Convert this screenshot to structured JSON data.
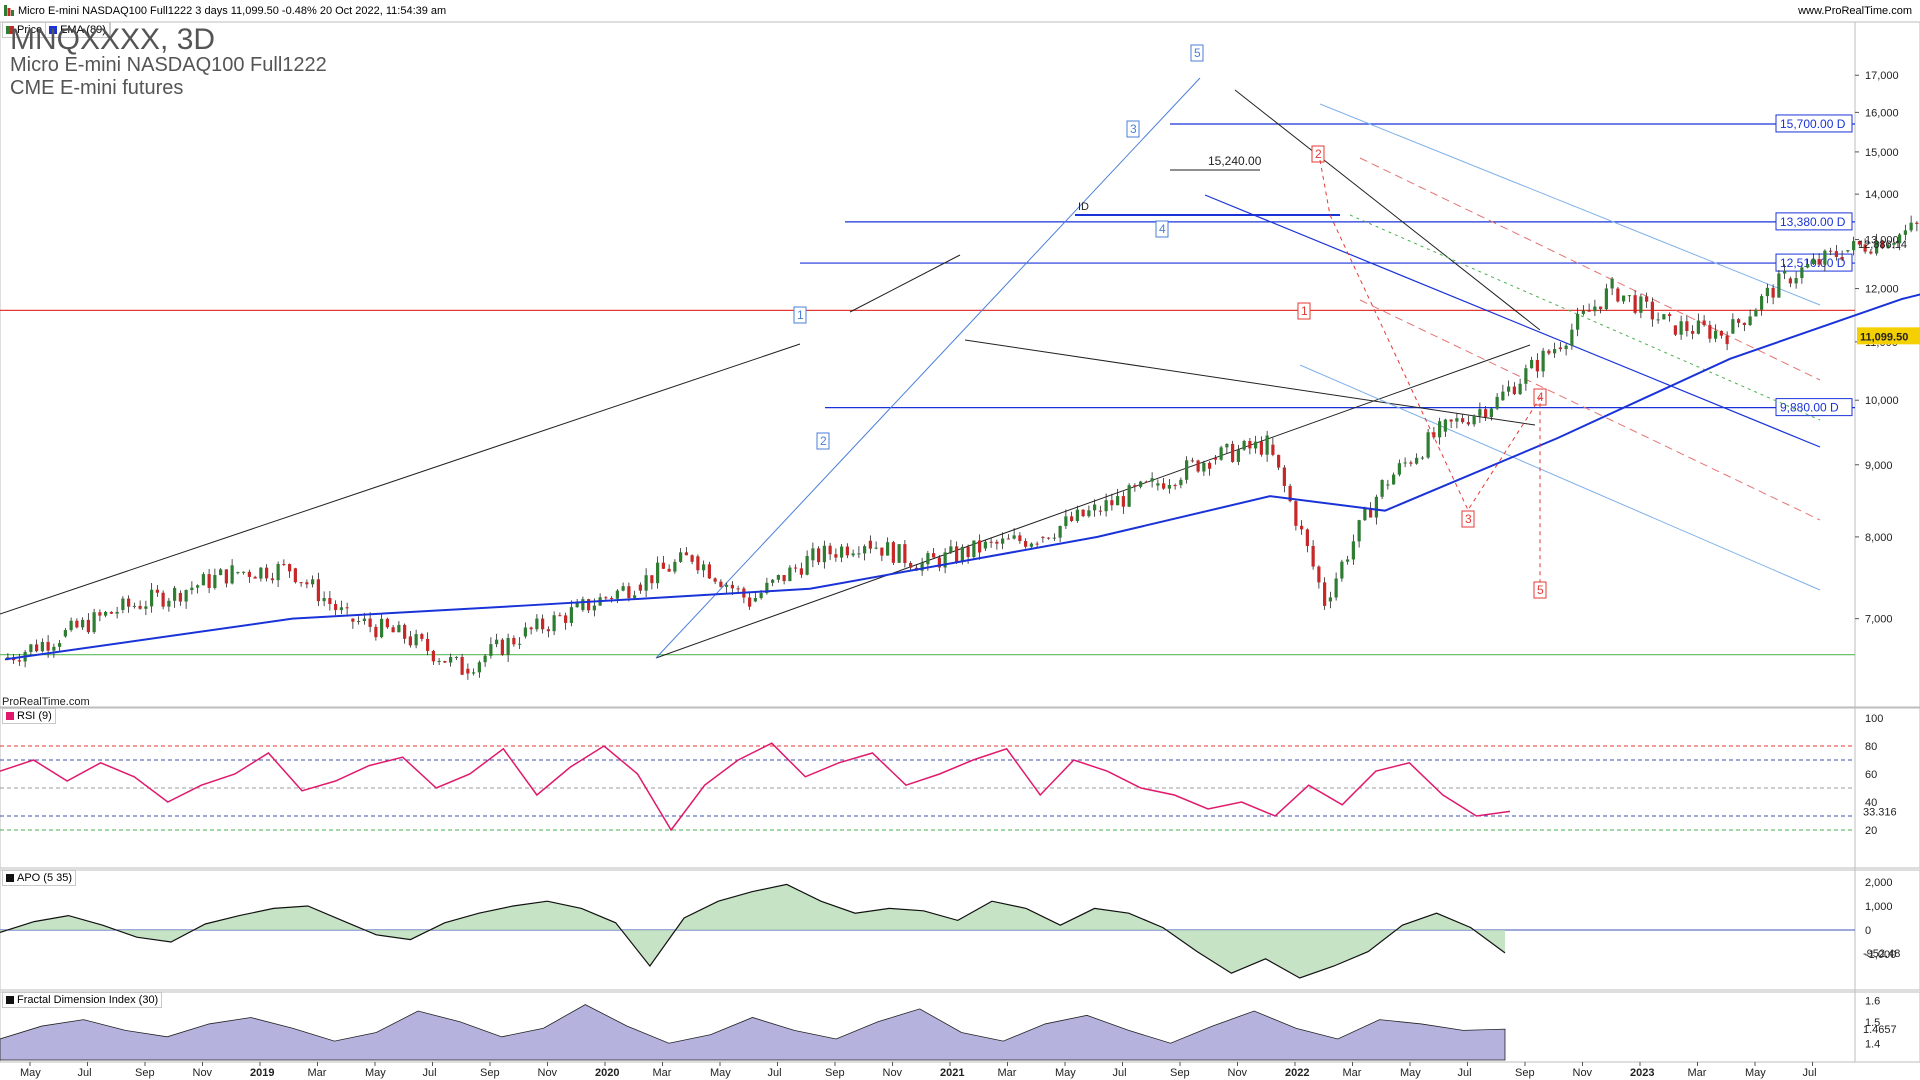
{
  "header": {
    "title": "Micro E-mini NASDAQ100 Full1222 3 days 11,099.50 -0.48% 20 Oct 2022, 11:54:39 am",
    "site": "www.ProRealTime.com"
  },
  "legend": {
    "price_label": "Price",
    "ema_label": "EMA (89)"
  },
  "instrument": {
    "symbol_title": "MNQXXXX, 3D",
    "name": "Micro E-mini NASDAQ100 Full1222",
    "exchange": "CME E-mini futures"
  },
  "watermark": "ProRealTime.com",
  "colors": {
    "price_up": "#2e7d32",
    "price_down": "#c62828",
    "ema": "#1a33d9",
    "level_line": "#1a33d9",
    "red_level": "#e53935",
    "support": "#5cb85c",
    "rsi": "#e0196b",
    "apo_line": "#111111",
    "apo_pos_fill": "#b8dcb8",
    "apo_neg_fill": "#d9b8b8",
    "fdi_fill": "#b5b3dd",
    "wave_blue": "#4a7fd9",
    "wave_red": "#e53935",
    "channel_light": "#7fb0ea",
    "last_price_bg": "#f5d000"
  },
  "time_axis": {
    "labels": [
      "May",
      "Jul",
      "Sep",
      "Nov",
      "2019",
      "Mar",
      "May",
      "Jul",
      "Sep",
      "Nov",
      "2020",
      "Mar",
      "May",
      "Jul",
      "Sep",
      "Nov",
      "2021",
      "Mar",
      "May",
      "Jul",
      "Sep",
      "Nov",
      "2022",
      "Mar",
      "May",
      "Jul",
      "Sep",
      "Nov",
      "2023",
      "Mar",
      "May",
      "Jul",
      "Sep"
    ],
    "bold": [
      "2019",
      "2020",
      "2021",
      "2022",
      "2023"
    ]
  },
  "price_axis": {
    "ticks": [
      "17,000",
      "16,000",
      "15,000",
      "14,000",
      "13,000",
      "12,000",
      "11,000",
      "10,000",
      "9,000",
      "8,000",
      "7,000"
    ],
    "last_price": "11,099.50",
    "small_marker": "12,886.14"
  },
  "levels": [
    {
      "label": "15,700.00 D",
      "value": 15700
    },
    {
      "label": "13,380.00 D",
      "value": 13380
    },
    {
      "label": "12,510.00 D",
      "value": 12510
    },
    {
      "label": "9,880.00 D",
      "value": 9880
    }
  ],
  "annotations": {
    "peak_label": "15,240.00",
    "blue_waves": [
      "1",
      "2",
      "3",
      "4",
      "5"
    ],
    "red_waves": [
      "1",
      "2",
      "3",
      "4",
      "5"
    ],
    "small_tag": "ID"
  },
  "rsi": {
    "title": "RSI (9)",
    "ticks": [
      "100",
      "80",
      "60",
      "40",
      "20"
    ],
    "value": "33.316"
  },
  "apo": {
    "title": "APO (5 35)",
    "ticks": [
      "2,000",
      "1,000",
      "0",
      "-1,000"
    ],
    "value": "-952.48"
  },
  "fdi": {
    "title": "Fractal Dimension Index (30)",
    "ticks": [
      "1.6",
      "1.5",
      "1.4"
    ],
    "value": "1.4657"
  },
  "chart_data": {
    "type": "line",
    "title": "Micro E-mini NASDAQ100 Full1222 3 days",
    "ylim": [
      6200,
      17600
    ],
    "y_scale": "log",
    "series": [
      {
        "name": "Price",
        "x": [
          "2018-04",
          "2018-05",
          "2018-06",
          "2018-07",
          "2018-08",
          "2018-09",
          "2018-10",
          "2018-11",
          "2018-12",
          "2019-01",
          "2019-02",
          "2019-03",
          "2019-04",
          "2019-05",
          "2019-06",
          "2019-07",
          "2019-08",
          "2019-09",
          "2019-10",
          "2019-11",
          "2019-12",
          "2020-01",
          "2020-02",
          "2020-03",
          "2020-04",
          "2020-05",
          "2020-06",
          "2020-07",
          "2020-08",
          "2020-09",
          "2020-10",
          "2020-11",
          "2020-12",
          "2021-01",
          "2021-02",
          "2021-03",
          "2021-04",
          "2021-05",
          "2021-06",
          "2021-07",
          "2021-08",
          "2021-09",
          "2021-10",
          "2021-11",
          "2021-12",
          "2022-01",
          "2022-02",
          "2022-03",
          "2022-04",
          "2022-05",
          "2022-06",
          "2022-07",
          "2022-08",
          "2022-09",
          "2022-10"
        ],
        "values": [
          6550,
          6800,
          7100,
          7300,
          7550,
          7600,
          7000,
          6800,
          6450,
          6800,
          7100,
          7400,
          7750,
          7200,
          7700,
          7950,
          7650,
          7850,
          8000,
          8350,
          8700,
          9100,
          9300,
          7200,
          8700,
          9500,
          10000,
          10900,
          12000,
          11300,
          11150,
          12200,
          12750,
          13100,
          13650,
          12800,
          13850,
          13400,
          14300,
          15050,
          15400,
          15300,
          15600,
          16500,
          16300,
          14900,
          14300,
          14700,
          12850,
          12200,
          11600,
          12500,
          13350,
          11900,
          11099.5
        ]
      },
      {
        "name": "EMA (89)",
        "x": [
          "2018-04",
          "2018-09",
          "2019-01",
          "2019-06",
          "2019-11",
          "2020-02",
          "2020-04",
          "2020-07",
          "2020-10",
          "2021-01",
          "2021-05",
          "2021-09",
          "2021-12",
          "2022-02",
          "2022-05",
          "2022-07",
          "2022-08",
          "2022-09"
        ],
        "values": [
          6550,
          7000,
          7150,
          7350,
          8000,
          8550,
          8350,
          9400,
          10700,
          11800,
          12950,
          14050,
          14550,
          14500,
          13600,
          13100,
          13300,
          13350
        ]
      }
    ],
    "rsi_values": [
      62,
      70,
      55,
      68,
      58,
      40,
      52,
      60,
      75,
      48,
      55,
      66,
      72,
      50,
      60,
      78,
      45,
      65,
      80,
      60,
      20,
      52,
      70,
      82,
      58,
      68,
      75,
      52,
      60,
      70,
      78,
      45,
      70,
      62,
      50,
      45,
      35,
      40,
      30,
      52,
      38,
      62,
      68,
      45,
      30,
      33.3
    ],
    "apo_values": [
      -100,
      350,
      600,
      200,
      -300,
      -500,
      250,
      600,
      900,
      1000,
      400,
      -200,
      -400,
      300,
      700,
      1000,
      1200,
      900,
      300,
      -1500,
      500,
      1200,
      1600,
      1900,
      1200,
      700,
      900,
      800,
      400,
      1200,
      900,
      200,
      900,
      700,
      100,
      -900,
      -1800,
      -1200,
      -2000,
      -1500,
      -900,
      200,
      700,
      100,
      -952.48
    ],
    "fdi_values": [
      1.42,
      1.48,
      1.51,
      1.46,
      1.43,
      1.49,
      1.52,
      1.47,
      1.41,
      1.45,
      1.55,
      1.5,
      1.43,
      1.47,
      1.58,
      1.48,
      1.4,
      1.44,
      1.52,
      1.46,
      1.42,
      1.5,
      1.56,
      1.45,
      1.41,
      1.49,
      1.53,
      1.46,
      1.4,
      1.48,
      1.55,
      1.47,
      1.42,
      1.51,
      1.49,
      1.46,
      1.4657
    ]
  }
}
